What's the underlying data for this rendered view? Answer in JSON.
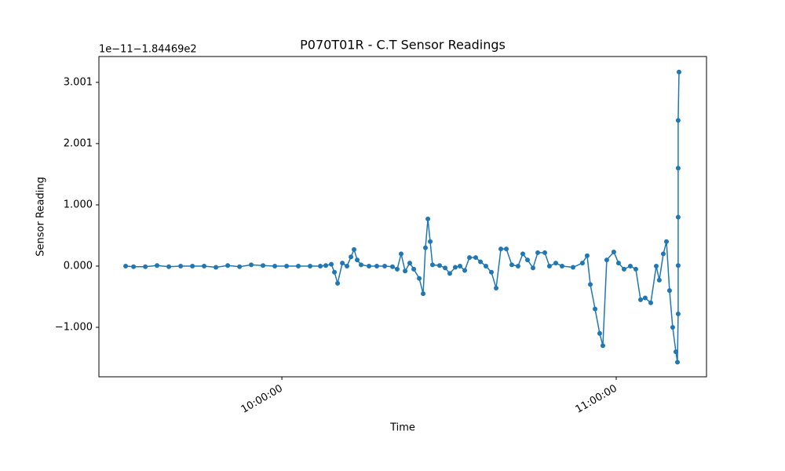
{
  "chart_data": {
    "type": "line",
    "title": "P070T01R - C.T Sensor Readings",
    "x_label": "Time",
    "y_label": "Sensor Reading",
    "y_offset_text": "1e−11−1.84469e2",
    "x": [
      "09:31:58",
      "09:33:23",
      "09:35:30",
      "09:37:36",
      "09:39:43",
      "09:41:50",
      "09:43:57",
      "09:46:03",
      "09:48:10",
      "09:50:17",
      "09:52:24",
      "09:54:30",
      "09:56:37",
      "09:58:44",
      "10:00:51",
      "10:02:57",
      "10:05:04",
      "10:06:54",
      "10:07:53",
      "10:08:52",
      "10:09:26",
      "10:10:00",
      "10:10:51",
      "10:11:41",
      "10:12:24",
      "10:12:57",
      "10:13:31",
      "10:14:13",
      "10:15:38",
      "10:17:02",
      "10:18:27",
      "10:19:51",
      "10:20:42",
      "10:21:24",
      "10:22:07",
      "10:22:57",
      "10:23:40",
      "10:24:39",
      "10:25:21",
      "10:25:46",
      "10:26:12",
      "10:26:37",
      "10:27:02",
      "10:28:18",
      "10:29:18",
      "10:30:08",
      "10:31:07",
      "10:31:58",
      "10:32:49",
      "10:33:40",
      "10:34:47",
      "10:35:38",
      "10:36:37",
      "10:37:36",
      "10:38:27",
      "10:39:18",
      "10:40:17",
      "10:41:16",
      "10:42:23",
      "10:43:14",
      "10:44:05",
      "10:45:04",
      "10:45:55",
      "10:47:11",
      "10:48:01",
      "10:49:09",
      "10:50:17",
      "10:52:15",
      "10:53:56",
      "10:54:47",
      "10:55:21",
      "10:56:12",
      "10:57:02",
      "10:57:36",
      "10:58:18",
      "10:59:34",
      "11:00:25",
      "11:01:24",
      "11:02:32",
      "11:03:31",
      "11:04:22",
      "11:05:12",
      "11:06:12",
      "11:07:11",
      "11:07:44",
      "11:08:27",
      "11:09:01",
      "11:09:34",
      "11:10:08",
      "11:10:42",
      "11:10:59",
      "11:11:07",
      "11:11:07",
      "11:11:07",
      "11:11:07",
      "11:11:07",
      "11:11:16"
    ],
    "series": [
      {
        "name": "P070T01R",
        "color": "#1f77b4",
        "values": [
          0,
          -0.01,
          -0.01,
          0.01,
          -0.01,
          0,
          0,
          0,
          -0.02,
          0.01,
          -0.01,
          0.02,
          0.01,
          0,
          0,
          0,
          0,
          0,
          0.01,
          0.03,
          -0.1,
          -0.28,
          0.05,
          0,
          0.15,
          0.27,
          0.1,
          0.02,
          0,
          0,
          0,
          -0.01,
          -0.05,
          0.2,
          -0.08,
          0.05,
          -0.05,
          -0.2,
          -0.45,
          0.3,
          0.77,
          0.4,
          0.02,
          0.01,
          -0.03,
          -0.12,
          -0.02,
          0,
          -0.07,
          0.14,
          0.14,
          0.07,
          0,
          -0.1,
          -0.36,
          0.28,
          0.28,
          0.02,
          0,
          0.2,
          0.1,
          -0.03,
          0.22,
          0.22,
          0,
          0.05,
          0,
          -0.02,
          0.05,
          0.17,
          -0.3,
          -0.7,
          -1.1,
          -1.3,
          0.1,
          0.23,
          0.05,
          -0.05,
          0,
          -0.05,
          -0.55,
          -0.52,
          -0.6,
          0,
          -0.23,
          0.2,
          0.4,
          -0.4,
          -1.0,
          -1.4,
          -1.57,
          -0.78,
          0.01,
          0.8,
          1.6,
          2.38,
          3.17
        ]
      }
    ],
    "xlim": [
      "09:27:10",
      "11:16:12"
    ],
    "xticks": [
      "10:00:00",
      "11:00:00"
    ],
    "ylim": [
      -1.808,
      3.423
    ],
    "yticks": [
      {
        "value": -1,
        "label": "−1.000"
      },
      {
        "value": 0,
        "label": "0.000"
      },
      {
        "value": 1,
        "label": "1.000"
      },
      2.001,
      3.001
    ],
    "grid": false
  }
}
